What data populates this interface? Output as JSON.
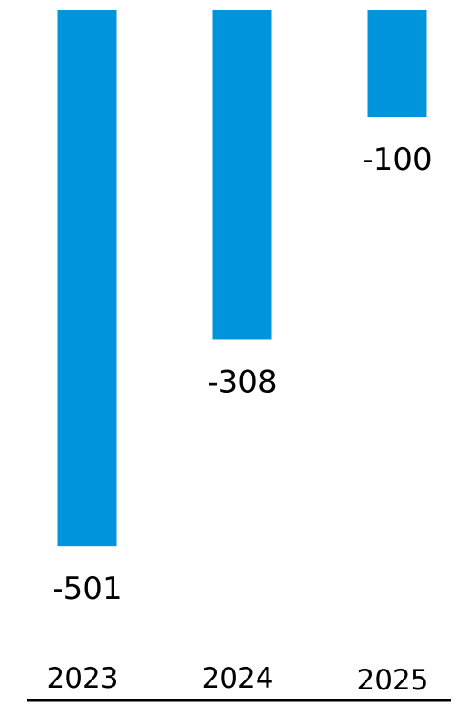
{
  "chart_data": {
    "type": "bar",
    "categories": [
      "2023",
      "2024",
      "2025"
    ],
    "values": [
      -501,
      -308,
      -100
    ],
    "data_labels": [
      "-501",
      "-308",
      "-100"
    ],
    "ylim": [
      -510,
      0
    ],
    "grid": false,
    "legend": "none",
    "bar_color": "#0094DC",
    "axis_color": "#000000"
  }
}
